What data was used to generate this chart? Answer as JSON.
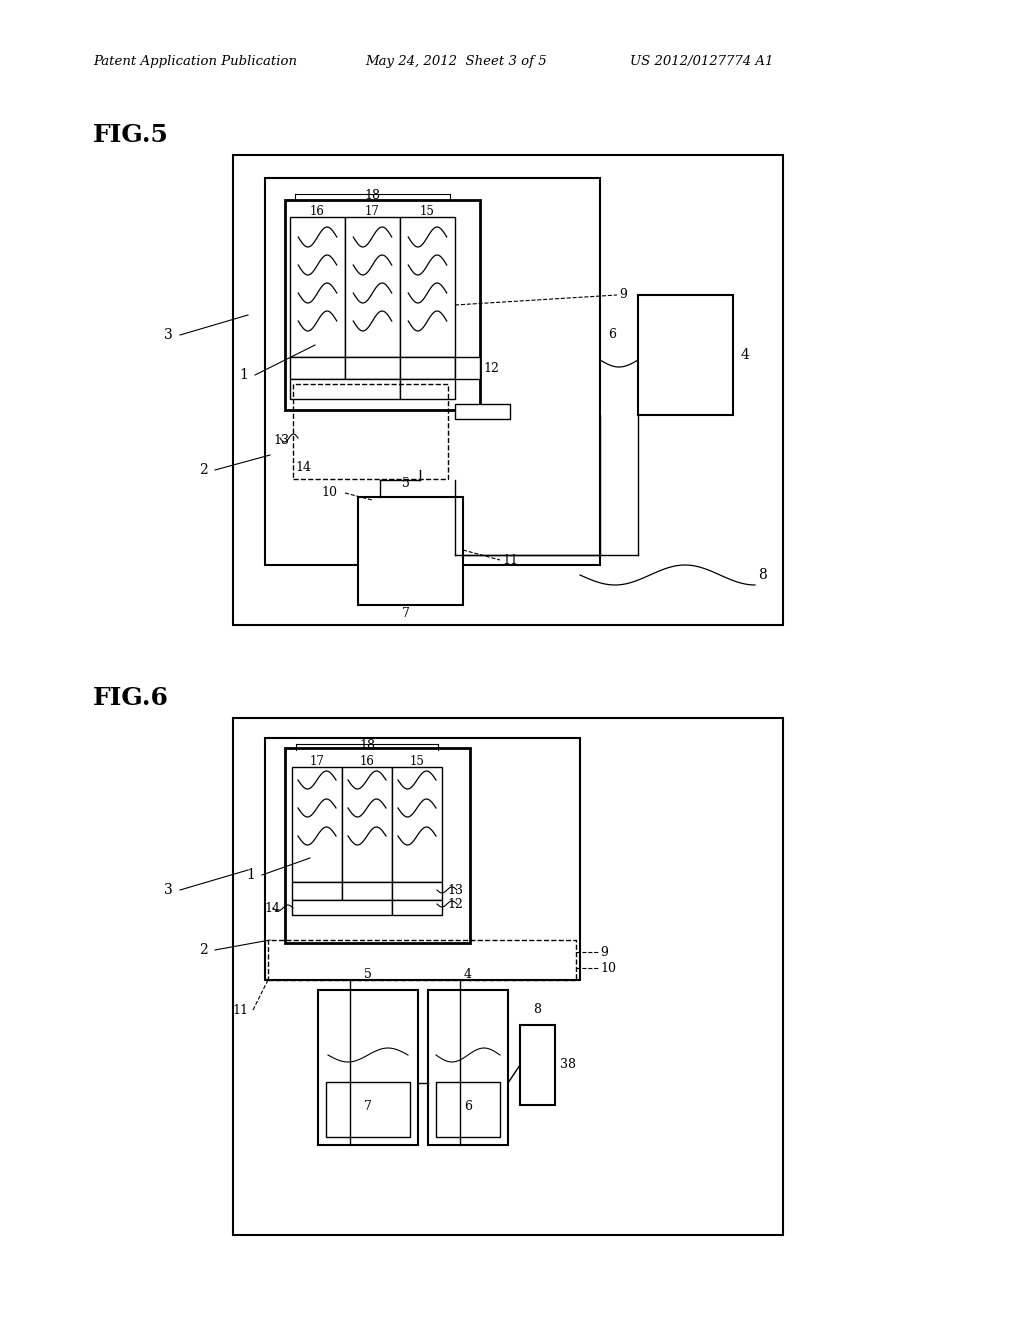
{
  "background_color": "#ffffff",
  "header_left": "Patent Application Publication",
  "header_mid": "May 24, 2012  Sheet 3 of 5",
  "header_right": "US 2012/0127774 A1",
  "fig5_label": "FIG.5",
  "fig6_label": "FIG.6"
}
